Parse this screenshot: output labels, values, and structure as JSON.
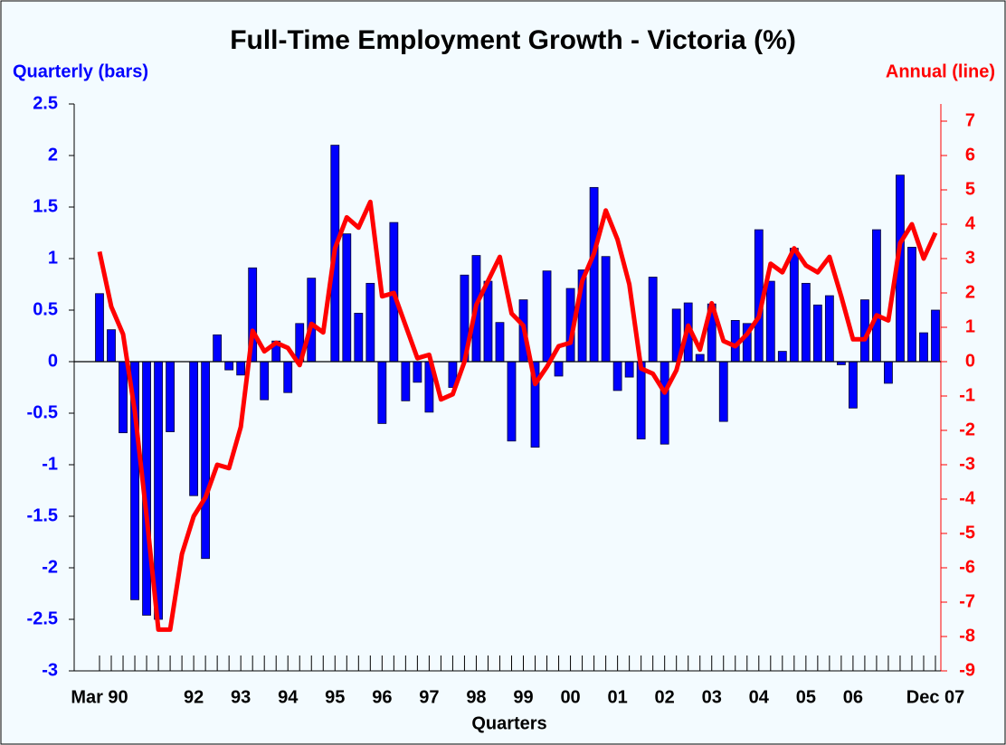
{
  "chart_data": {
    "type": "bar-line",
    "title": "Full-Time Employment Growth - Victoria (%)",
    "x_label": "Quarters",
    "categories": [
      "Mar 90",
      null,
      null,
      null,
      null,
      null,
      null,
      null,
      "92",
      null,
      null,
      null,
      "93",
      null,
      null,
      null,
      "94",
      null,
      null,
      null,
      "95",
      null,
      null,
      null,
      "96",
      null,
      null,
      null,
      "97",
      null,
      null,
      null,
      "98",
      null,
      null,
      null,
      "99",
      null,
      null,
      null,
      "00",
      null,
      null,
      null,
      "01",
      null,
      null,
      null,
      "02",
      null,
      null,
      null,
      "03",
      null,
      null,
      null,
      "04",
      null,
      null,
      null,
      "05",
      null,
      null,
      null,
      "06",
      null,
      null,
      null,
      null,
      null,
      null,
      "Dec 07"
    ],
    "series": [
      {
        "name": "Quarterly (bars)",
        "color": "#0000ff",
        "type": "bar",
        "axis": "y",
        "values": [
          0.66,
          0.31,
          -0.69,
          -2.31,
          -2.46,
          -2.5,
          -0.68,
          0,
          -1.3,
          -1.91,
          0.26,
          -0.08,
          -0.13,
          0.91,
          -0.37,
          0.2,
          -0.3,
          0.37,
          0.81,
          0,
          2.1,
          1.24,
          0.47,
          0.76,
          -0.6,
          1.35,
          -0.38,
          -0.2,
          -0.49,
          0,
          -0.25,
          0.84,
          1.03,
          0.78,
          0.38,
          -0.77,
          0.6,
          -0.83,
          0.88,
          -0.14,
          0.71,
          0.89,
          1.69,
          1.02,
          -0.28,
          -0.15,
          -0.75,
          0.82,
          -0.8,
          0.51,
          0.57,
          0.07,
          0.56,
          -0.58,
          0.4,
          0.37,
          1.28,
          0.78,
          0.1,
          1.1,
          0.76,
          0.55,
          0.64,
          -0.03,
          -0.45,
          0.6,
          1.28,
          -0.21,
          1.81,
          1.11,
          0.28,
          0.5
        ]
      },
      {
        "name": "Annual (line)",
        "color": "#ff0000",
        "type": "line",
        "axis": "y2",
        "values": [
          3.2,
          1.6,
          0.8,
          -1.45,
          -4.5,
          -7.8,
          -7.8,
          -5.6,
          -4.5,
          -3.95,
          -3.0,
          -3.1,
          -1.9,
          0.9,
          0.3,
          0.55,
          0.4,
          -0.1,
          1.1,
          0.85,
          3.3,
          4.2,
          3.9,
          4.65,
          1.9,
          2.0,
          1.05,
          0.1,
          0.2,
          -1.1,
          -0.95,
          0,
          1.65,
          2.35,
          3.05,
          1.4,
          1.05,
          -0.65,
          -0.15,
          0.45,
          0.55,
          2.35,
          3.15,
          4.4,
          3.55,
          2.25,
          -0.2,
          -0.35,
          -0.9,
          -0.25,
          1.05,
          0.35,
          1.7,
          0.6,
          0.45,
          0.8,
          1.3,
          2.85,
          2.6,
          3.3,
          2.8,
          2.6,
          3.05,
          1.9,
          0.65,
          0.65,
          1.35,
          1.2,
          3.45,
          4.0,
          3.0,
          3.75
        ]
      }
    ],
    "ylim": [
      -3,
      2.5
    ],
    "yticks": [
      -3,
      -2.5,
      -2,
      -1.5,
      -1,
      -0.5,
      0,
      0.5,
      1,
      1.5,
      2,
      2.5
    ],
    "y2lim": [
      -9,
      7.5
    ],
    "y2ticks": [
      -9,
      -8,
      -7,
      -6,
      -5,
      -4,
      -3,
      -2,
      -1,
      0,
      1,
      2,
      3,
      4,
      5,
      6,
      7
    ]
  }
}
